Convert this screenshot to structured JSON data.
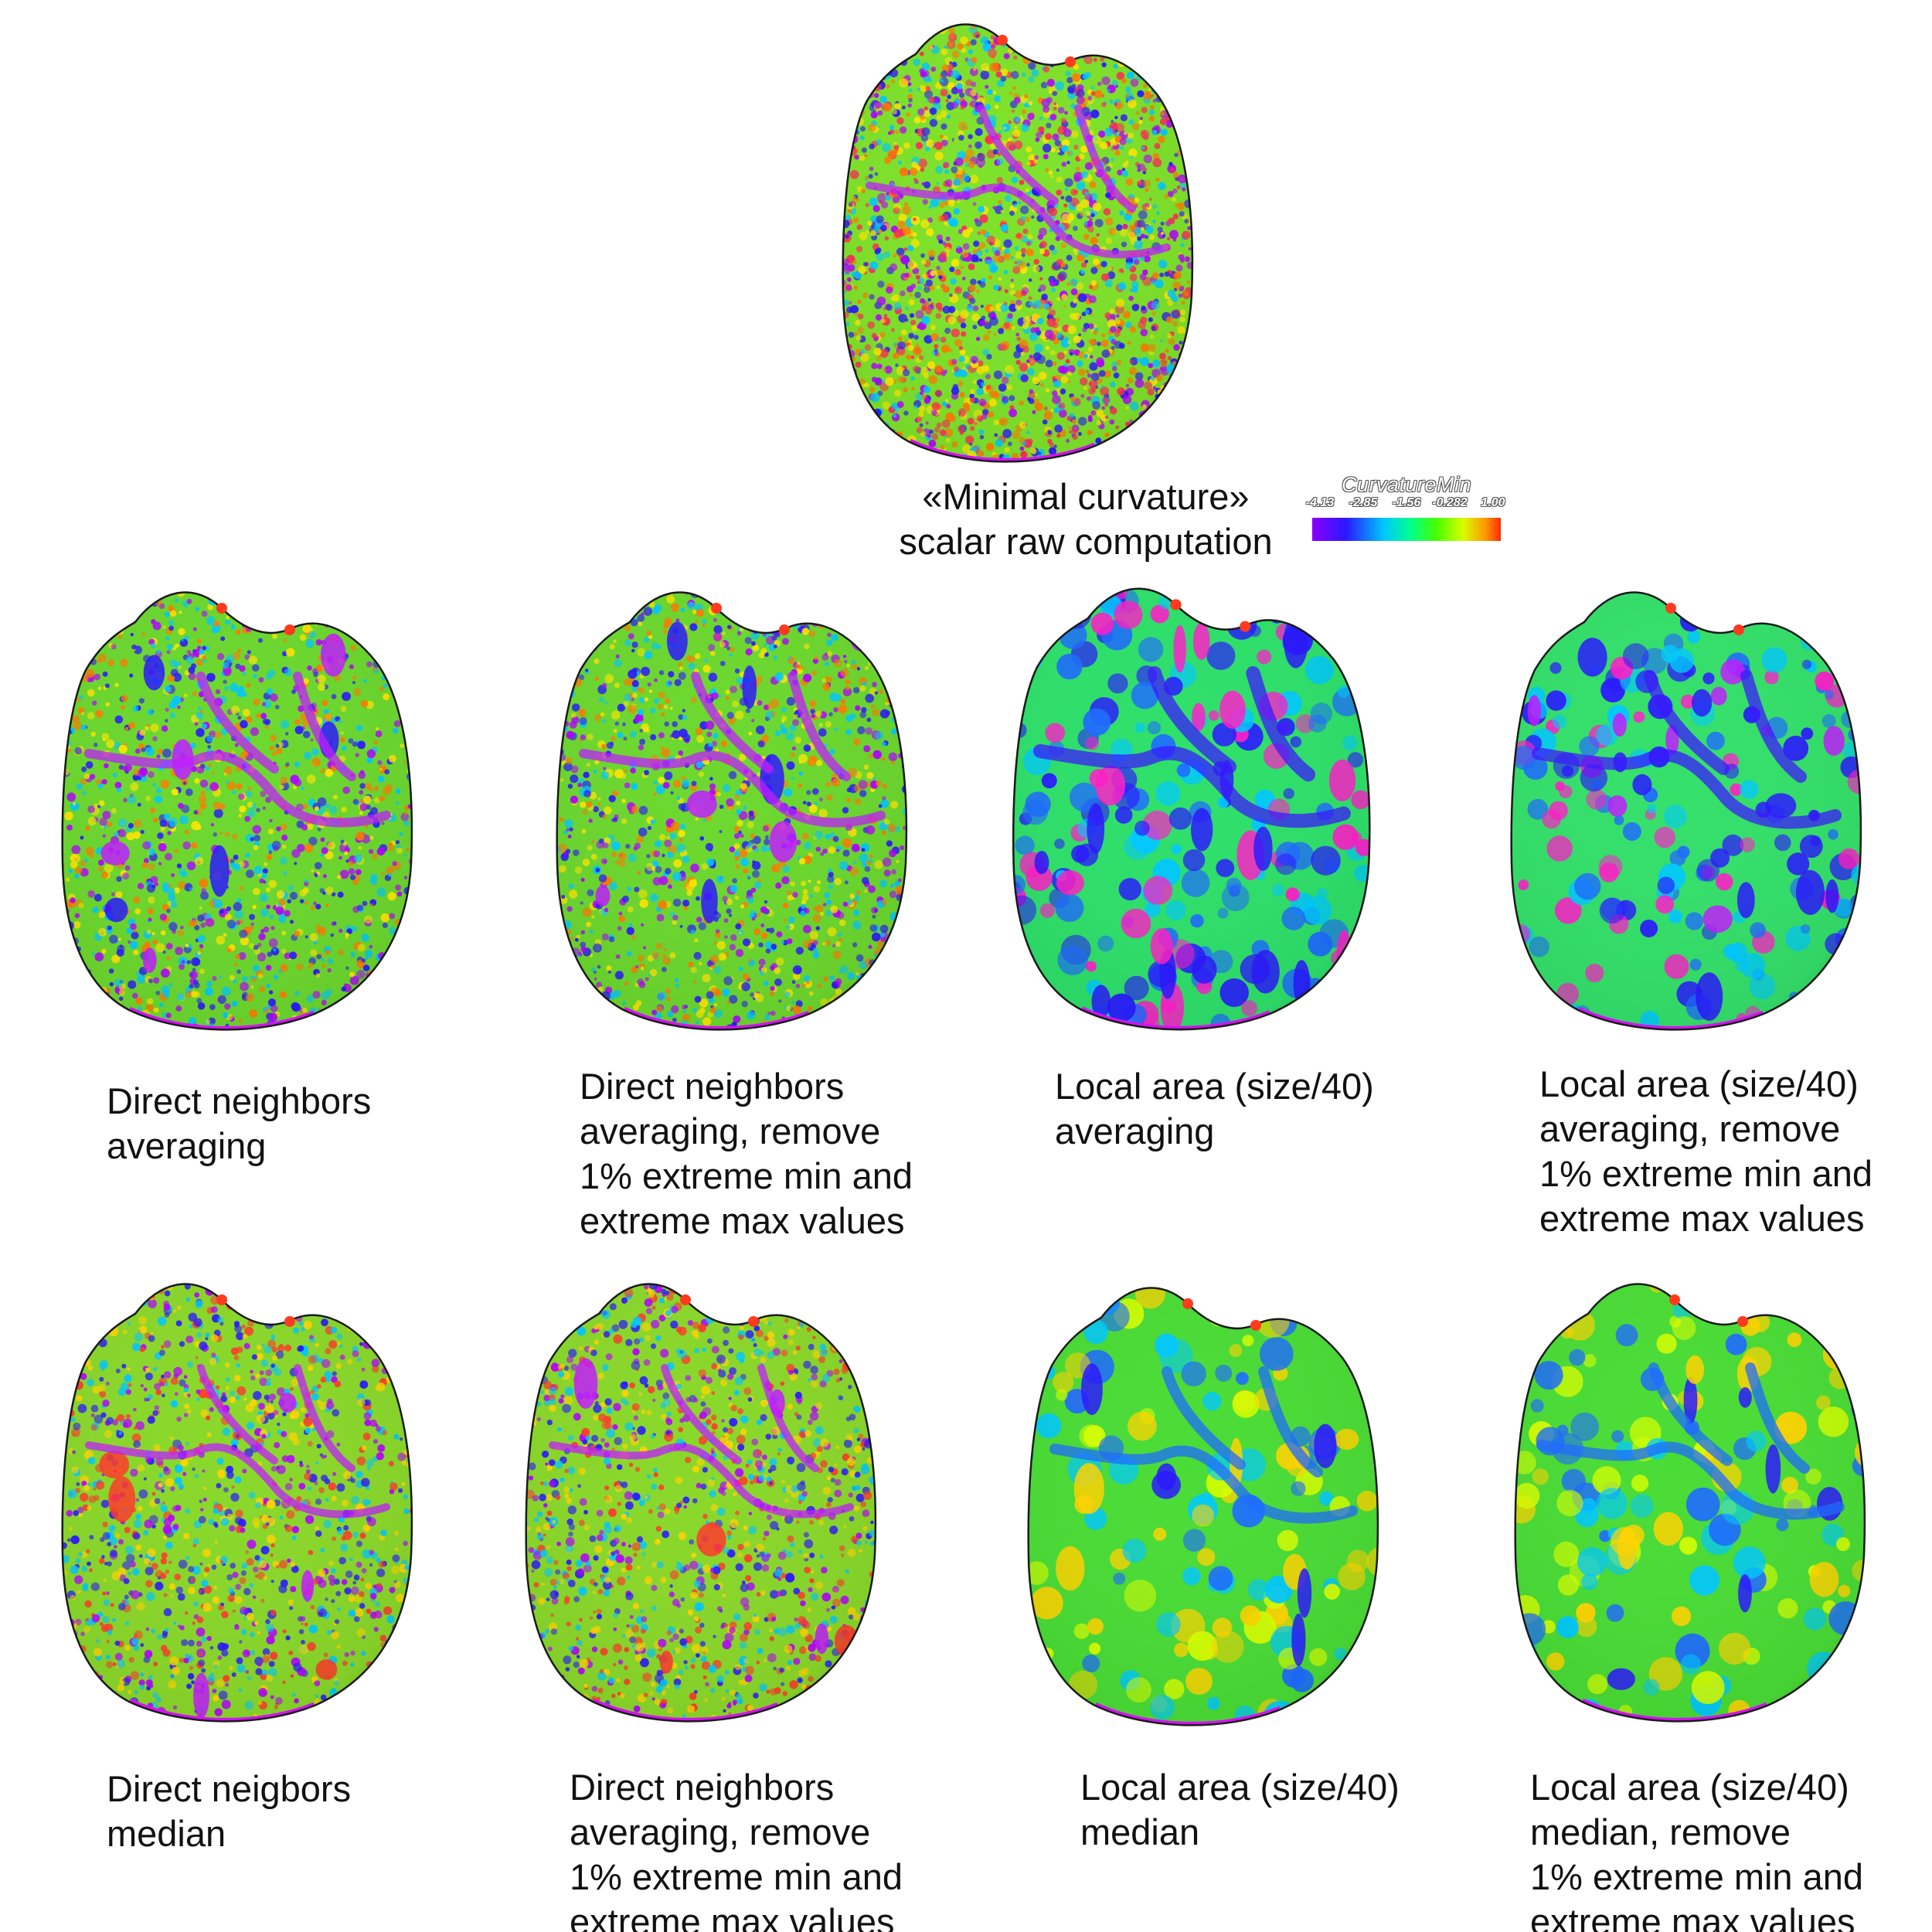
{
  "colorbar": {
    "title": "CurvatureMin",
    "ticks": [
      "-4.13",
      "-2.85",
      "-1.56",
      "-0.282",
      "1.00"
    ],
    "colors": [
      "#8a00ff",
      "#2a18ff",
      "#00c8ff",
      "#00ff90",
      "#48ff00",
      "#d8ff00",
      "#ff9600",
      "#ff2a00"
    ]
  },
  "panels": {
    "raw": {
      "lines": [
        "«Minimal curvature»",
        "scalar raw computation"
      ]
    },
    "r1c1": {
      "lines": [
        "Direct neighbors",
        "averaging"
      ]
    },
    "r1c2": {
      "lines": [
        "Direct neighbors",
        "averaging, remove",
        "1% extreme min and",
        "extreme max values"
      ]
    },
    "r1c3": {
      "lines": [
        "Local area (size/40)",
        "averaging"
      ]
    },
    "r1c4": {
      "lines": [
        "Local area (size/40)",
        "averaging, remove",
        "1% extreme min and",
        "extreme max values"
      ]
    },
    "r2c1": {
      "lines": [
        "Direct neigbors",
        "median"
      ]
    },
    "r2c2": {
      "lines": [
        "Direct neighbors",
        "averaging, remove",
        "1% extreme min and",
        "extreme max values"
      ]
    },
    "r2c3": {
      "lines": [
        "Local area (size/40)",
        "median"
      ]
    },
    "r2c4": {
      "lines": [
        "Local area (size/40)",
        "median, remove",
        "1% extreme min and",
        "extreme max values"
      ]
    }
  }
}
